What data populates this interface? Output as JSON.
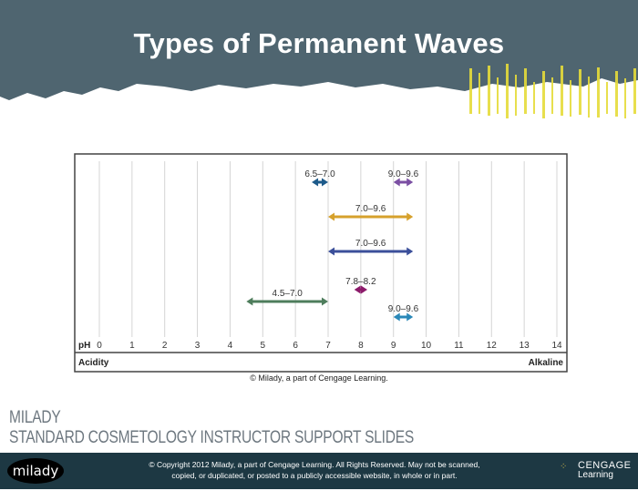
{
  "slide": {
    "title": "Types of Permanent Waves",
    "credit": "© Milady, a part of Cengage Learning."
  },
  "branding": {
    "line1": "MILADY",
    "line2": "STANDARD COSMETOLOGY INSTRUCTOR SUPPORT SLIDES"
  },
  "footer": {
    "logo": "milady",
    "copyright_line1": "© Copyright 2012 Milady, a part of Cengage Learning. All Rights Reserved. May not be scanned,",
    "copyright_line2": "copied, or duplicated, or posted to a publicly accessible website, in whole or in part.",
    "cengage_line1": "CENGAGE",
    "cengage_line2": "Learning"
  },
  "colors": {
    "banner": "#4f6570",
    "footer": "#1d3843",
    "accent_yellow": "#e6dc3a"
  },
  "chart_data": {
    "type": "range",
    "xlabel": "pH",
    "left_label": "Acidity",
    "right_label": "Alkaline",
    "xlim": [
      0,
      14
    ],
    "ticks": [
      0,
      1,
      2,
      3,
      4,
      5,
      6,
      7,
      8,
      9,
      10,
      11,
      12,
      13,
      14
    ],
    "grid": true,
    "ranges": [
      {
        "label": "6.5–7.0",
        "from": 6.5,
        "to": 7.0,
        "color": "#1d5a8a"
      },
      {
        "label": "9.0–9.6",
        "from": 9.0,
        "to": 9.6,
        "color": "#7b4fa3"
      },
      {
        "label": "7.0–9.6",
        "from": 7.0,
        "to": 9.6,
        "color": "#d6a12c"
      },
      {
        "label": "7.0–9.6",
        "from": 7.0,
        "to": 9.6,
        "color": "#3b4f9a"
      },
      {
        "label": "7.8–8.2",
        "from": 7.8,
        "to": 8.2,
        "color": "#8c1a6a"
      },
      {
        "label": "4.5–7.0",
        "from": 4.5,
        "to": 7.0,
        "color": "#4e7d5c"
      },
      {
        "label": "9.0–9.6",
        "from": 9.0,
        "to": 9.6,
        "color": "#2a88b8"
      }
    ]
  }
}
